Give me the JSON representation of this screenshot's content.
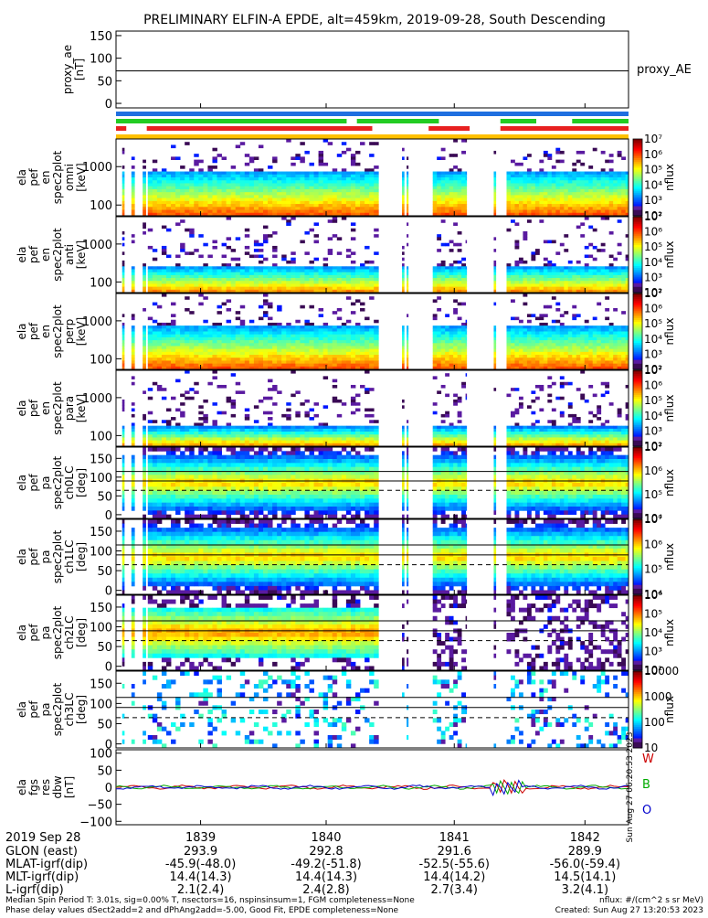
{
  "chart_data": {
    "type": "heatmap",
    "title": "PRELIMINARY ELFIN-A EPDE, alt=459km, 2019-09-28, South Descending",
    "proxy_panel": {
      "ylabel": [
        "proxy_ae",
        "[nT]"
      ],
      "yticks": [
        "150",
        "100",
        "50",
        "0"
      ],
      "ylim": [
        -10,
        160
      ],
      "line_value": 72,
      "legend": "proxy_AE"
    },
    "status_bars": [
      {
        "color": "#1f6fe0",
        "segments": [
          [
            0.0,
            1.0
          ]
        ]
      },
      {
        "color": "#22cc22",
        "segments": [
          [
            0.0,
            0.45
          ],
          [
            0.47,
            0.63
          ],
          [
            0.75,
            0.82
          ],
          [
            0.89,
            1.0
          ]
        ]
      },
      {
        "color": "#e82020",
        "segments": [
          [
            0.0,
            0.02
          ],
          [
            0.06,
            0.5
          ],
          [
            0.61,
            0.69
          ],
          [
            0.75,
            1.0
          ]
        ]
      },
      {
        "color": "#ffc000",
        "segments": [
          [
            0.0,
            1.0
          ]
        ]
      }
    ],
    "spectra_panels": [
      {
        "ylabel": [
          "ela",
          "pef",
          "en",
          "spec2plot",
          "omni",
          "[keV]"
        ],
        "yticks": [
          "1000",
          "100"
        ],
        "cb_labels": [
          "10⁷",
          "10⁶",
          "10⁵",
          "10⁴",
          "10³",
          "10²"
        ],
        "cb_unit": "nflux"
      },
      {
        "ylabel": [
          "ela",
          "pef",
          "en",
          "spec2plot",
          "anti",
          "[keV]"
        ],
        "yticks": [
          "1000",
          "100"
        ],
        "cb_labels": [
          "10⁷",
          "10⁶",
          "10⁵",
          "10⁴",
          "10³",
          "10²"
        ],
        "cb_unit": "nflux"
      },
      {
        "ylabel": [
          "ela",
          "pef",
          "en",
          "spec2plot",
          "perp",
          "[keV]"
        ],
        "yticks": [
          "1000",
          "100"
        ],
        "cb_labels": [
          "10⁷",
          "10⁶",
          "10⁵",
          "10⁴",
          "10³",
          "10²"
        ],
        "cb_unit": "nflux"
      },
      {
        "ylabel": [
          "ela",
          "pef",
          "en",
          "spec2plot",
          "para",
          "[keV]"
        ],
        "yticks": [
          "1000",
          "100"
        ],
        "cb_labels": [
          "10⁷",
          "10⁶",
          "10⁵",
          "10⁴",
          "10³",
          "10²"
        ],
        "cb_unit": "nflux"
      }
    ],
    "pitch_panels": [
      {
        "ylabel": [
          "ela",
          "pef",
          "pa",
          "spec2plot",
          "ch0LC",
          "[deg]"
        ],
        "yticks": [
          "150",
          "100",
          "50",
          "0"
        ],
        "cb_labels": [
          "10⁷",
          "10⁶",
          "10⁵",
          "10⁴"
        ],
        "cb_unit": "nflux"
      },
      {
        "ylabel": [
          "ela",
          "pef",
          "pa",
          "spec2plot",
          "ch1LC",
          "[deg]"
        ],
        "yticks": [
          "150",
          "100",
          "50",
          "0"
        ],
        "cb_labels": [
          "10⁷",
          "10⁶",
          "10⁵",
          "10⁴"
        ],
        "cb_unit": "nflux"
      },
      {
        "ylabel": [
          "ela",
          "pef",
          "pa",
          "spec2plot",
          "ch2LC",
          "[deg]"
        ],
        "yticks": [
          "150",
          "100",
          "50",
          "0"
        ],
        "cb_labels": [
          "10⁶",
          "10⁵",
          "10⁴",
          "10³",
          "10²"
        ],
        "cb_unit": "nflux"
      },
      {
        "ylabel": [
          "ela",
          "pef",
          "pa",
          "spec2plot",
          "ch3LC",
          "[deg]"
        ],
        "yticks": [
          "150",
          "100",
          "50",
          "0"
        ],
        "cb_labels": [
          "10000",
          "1000",
          "100",
          "10"
        ],
        "cb_unit": "nflux"
      }
    ],
    "pitch_lines": {
      "solid": [
        90,
        115
      ],
      "dashed": 65
    },
    "fgm_panel": {
      "ylabel": [
        "ela",
        "fgs",
        "res",
        "dbw",
        "[nT]"
      ],
      "yticks": [
        "100",
        "50",
        "0",
        "−50",
        "−100"
      ],
      "ylim": [
        -110,
        110
      ],
      "legend": [
        {
          "name": "W",
          "color": "#cc0000"
        },
        {
          "name": "B",
          "color": "#00aa00"
        },
        {
          "name": "O",
          "color": "#0000cc"
        }
      ],
      "side_text": "Sun Aug 27 06:20:53 2023"
    },
    "x_axis": {
      "date": "2019 Sep 28",
      "ticks": [
        "1839",
        "1840",
        "1841",
        "1842"
      ],
      "rows": [
        {
          "label": "GLON (east)",
          "values": [
            "293.9",
            "292.8",
            "291.6",
            "289.9"
          ]
        },
        {
          "label": "MLAT-igrf(dip)",
          "values": [
            "-45.9(-48.0)",
            "-49.2(-51.8)",
            "-52.5(-55.6)",
            "-56.0(-59.4)"
          ]
        },
        {
          "label": "MLT-igrf(dip)",
          "values": [
            "14.4(14.3)",
            "14.4(14.3)",
            "14.4(14.2)",
            "14.5(14.1)"
          ]
        },
        {
          "label": "L-igrf(dip)",
          "values": [
            "2.1(2.4)",
            "2.4(2.8)",
            "2.7(3.4)",
            "3.2(4.1)"
          ]
        }
      ]
    },
    "footer": {
      "left1": "Median Spin Period T: 3.01s, sig=0.00% T, nsectors=16, nspinsinsum=1, FGM completeness=None",
      "left2": "Phase delay values dSect2add=2 and dPhAng2add=-5.00, Good Fit, EPDE completeness=None",
      "right1": "nflux: #/(cm^2 s sr MeV)",
      "right2": "Created: Sun Aug 27 13:20:53 2023"
    }
  }
}
